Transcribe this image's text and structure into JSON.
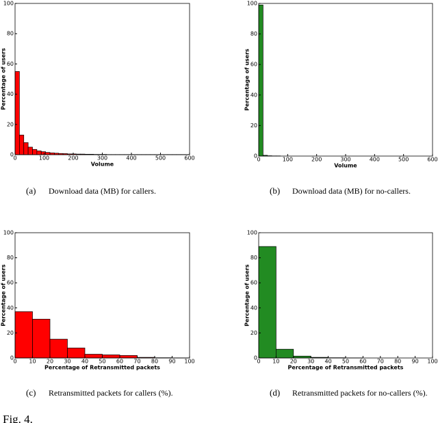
{
  "chart_data": [
    {
      "type": "histogram",
      "panel": "(a)",
      "caption": "Download data (MB) for callers.",
      "xlabel": "Volume",
      "ylabel": "Percentage of users",
      "color": "#ff0000",
      "bins": [
        0,
        15,
        30,
        45,
        60,
        75,
        90,
        105,
        120,
        135,
        150,
        165,
        180,
        195,
        210,
        225,
        240,
        255,
        270,
        285,
        300,
        315,
        330,
        345,
        360,
        375,
        390,
        405,
        420,
        435,
        450,
        465,
        480,
        495,
        510,
        525,
        540,
        555,
        570,
        585,
        600
      ],
      "values": [
        55,
        13,
        8,
        5,
        3.5,
        2.5,
        2,
        1.5,
        1.2,
        1,
        0.8,
        0.7,
        0.5,
        0.5,
        0.4,
        0.4,
        0.3,
        0.3,
        0.2,
        0.2,
        0.2,
        0.1,
        0.1,
        0.1,
        0.1,
        0.1,
        0.1,
        0.1,
        0.1,
        0.1,
        0.1,
        0.1,
        0.1,
        0.1,
        0.1,
        0.1,
        0.1,
        0.1,
        0.1,
        0.1
      ],
      "xlim": [
        0,
        600
      ],
      "ylim": [
        0,
        100
      ],
      "xticks": [
        0,
        100,
        200,
        300,
        400,
        500,
        600
      ],
      "yticks": [
        0,
        20,
        40,
        60,
        80,
        100
      ]
    },
    {
      "type": "histogram",
      "panel": "(b)",
      "caption": "Download data (MB) for no-callers.",
      "xlabel": "Volume",
      "ylabel": "Percentage of users",
      "color": "#228b22",
      "bins": [
        0,
        15,
        30,
        45,
        60,
        75,
        90,
        105,
        120,
        135,
        150,
        165,
        180,
        195,
        210,
        225,
        240,
        255,
        270,
        285,
        300,
        315,
        330,
        345,
        360,
        375,
        390,
        405,
        420,
        435,
        450,
        465,
        480,
        495,
        510,
        525,
        540,
        555,
        570,
        585,
        600
      ],
      "values": [
        99,
        0.5,
        0.2,
        0.1,
        0.1,
        0,
        0,
        0,
        0,
        0,
        0,
        0,
        0,
        0,
        0,
        0,
        0,
        0,
        0,
        0,
        0,
        0,
        0,
        0,
        0,
        0,
        0,
        0,
        0,
        0,
        0,
        0,
        0,
        0,
        0,
        0,
        0,
        0,
        0,
        0
      ],
      "xlim": [
        0,
        600
      ],
      "ylim": [
        0,
        100
      ],
      "xticks": [
        0,
        100,
        200,
        300,
        400,
        500,
        600
      ],
      "yticks": [
        0,
        20,
        40,
        60,
        80,
        100
      ]
    },
    {
      "type": "histogram",
      "panel": "(c)",
      "caption": "Retransmitted packets for callers (%).",
      "xlabel": "Percentage of Retransmitted packets",
      "ylabel": "Percentage of users",
      "color": "#ff0000",
      "bins": [
        0,
        10,
        20,
        30,
        40,
        50,
        60,
        70,
        80,
        90,
        100
      ],
      "values": [
        37,
        31,
        15,
        8,
        3,
        2.5,
        2,
        0.5,
        0.2,
        0.1
      ],
      "xlim": [
        0,
        100
      ],
      "ylim": [
        0,
        100
      ],
      "xticks": [
        0,
        10,
        20,
        30,
        40,
        50,
        60,
        70,
        80,
        90,
        100
      ],
      "yticks": [
        0,
        20,
        40,
        60,
        80,
        100
      ]
    },
    {
      "type": "histogram",
      "panel": "(d)",
      "caption": "Retransmitted packets for no-callers (%).",
      "xlabel": "Percentage of Retransmitted packets",
      "ylabel": "Percentage of users",
      "color": "#228b22",
      "bins": [
        0,
        10,
        20,
        30,
        40,
        50,
        60,
        70,
        80,
        90,
        100
      ],
      "values": [
        89,
        7,
        1.5,
        0.5,
        0.2,
        0.1,
        0,
        0,
        0,
        0
      ],
      "xlim": [
        0,
        100
      ],
      "ylim": [
        0,
        100
      ],
      "xticks": [
        0,
        10,
        20,
        30,
        40,
        50,
        60,
        70,
        80,
        90,
        100
      ],
      "yticks": [
        0,
        20,
        40,
        60,
        80,
        100
      ]
    }
  ],
  "figure_caption": "Fig. 4."
}
